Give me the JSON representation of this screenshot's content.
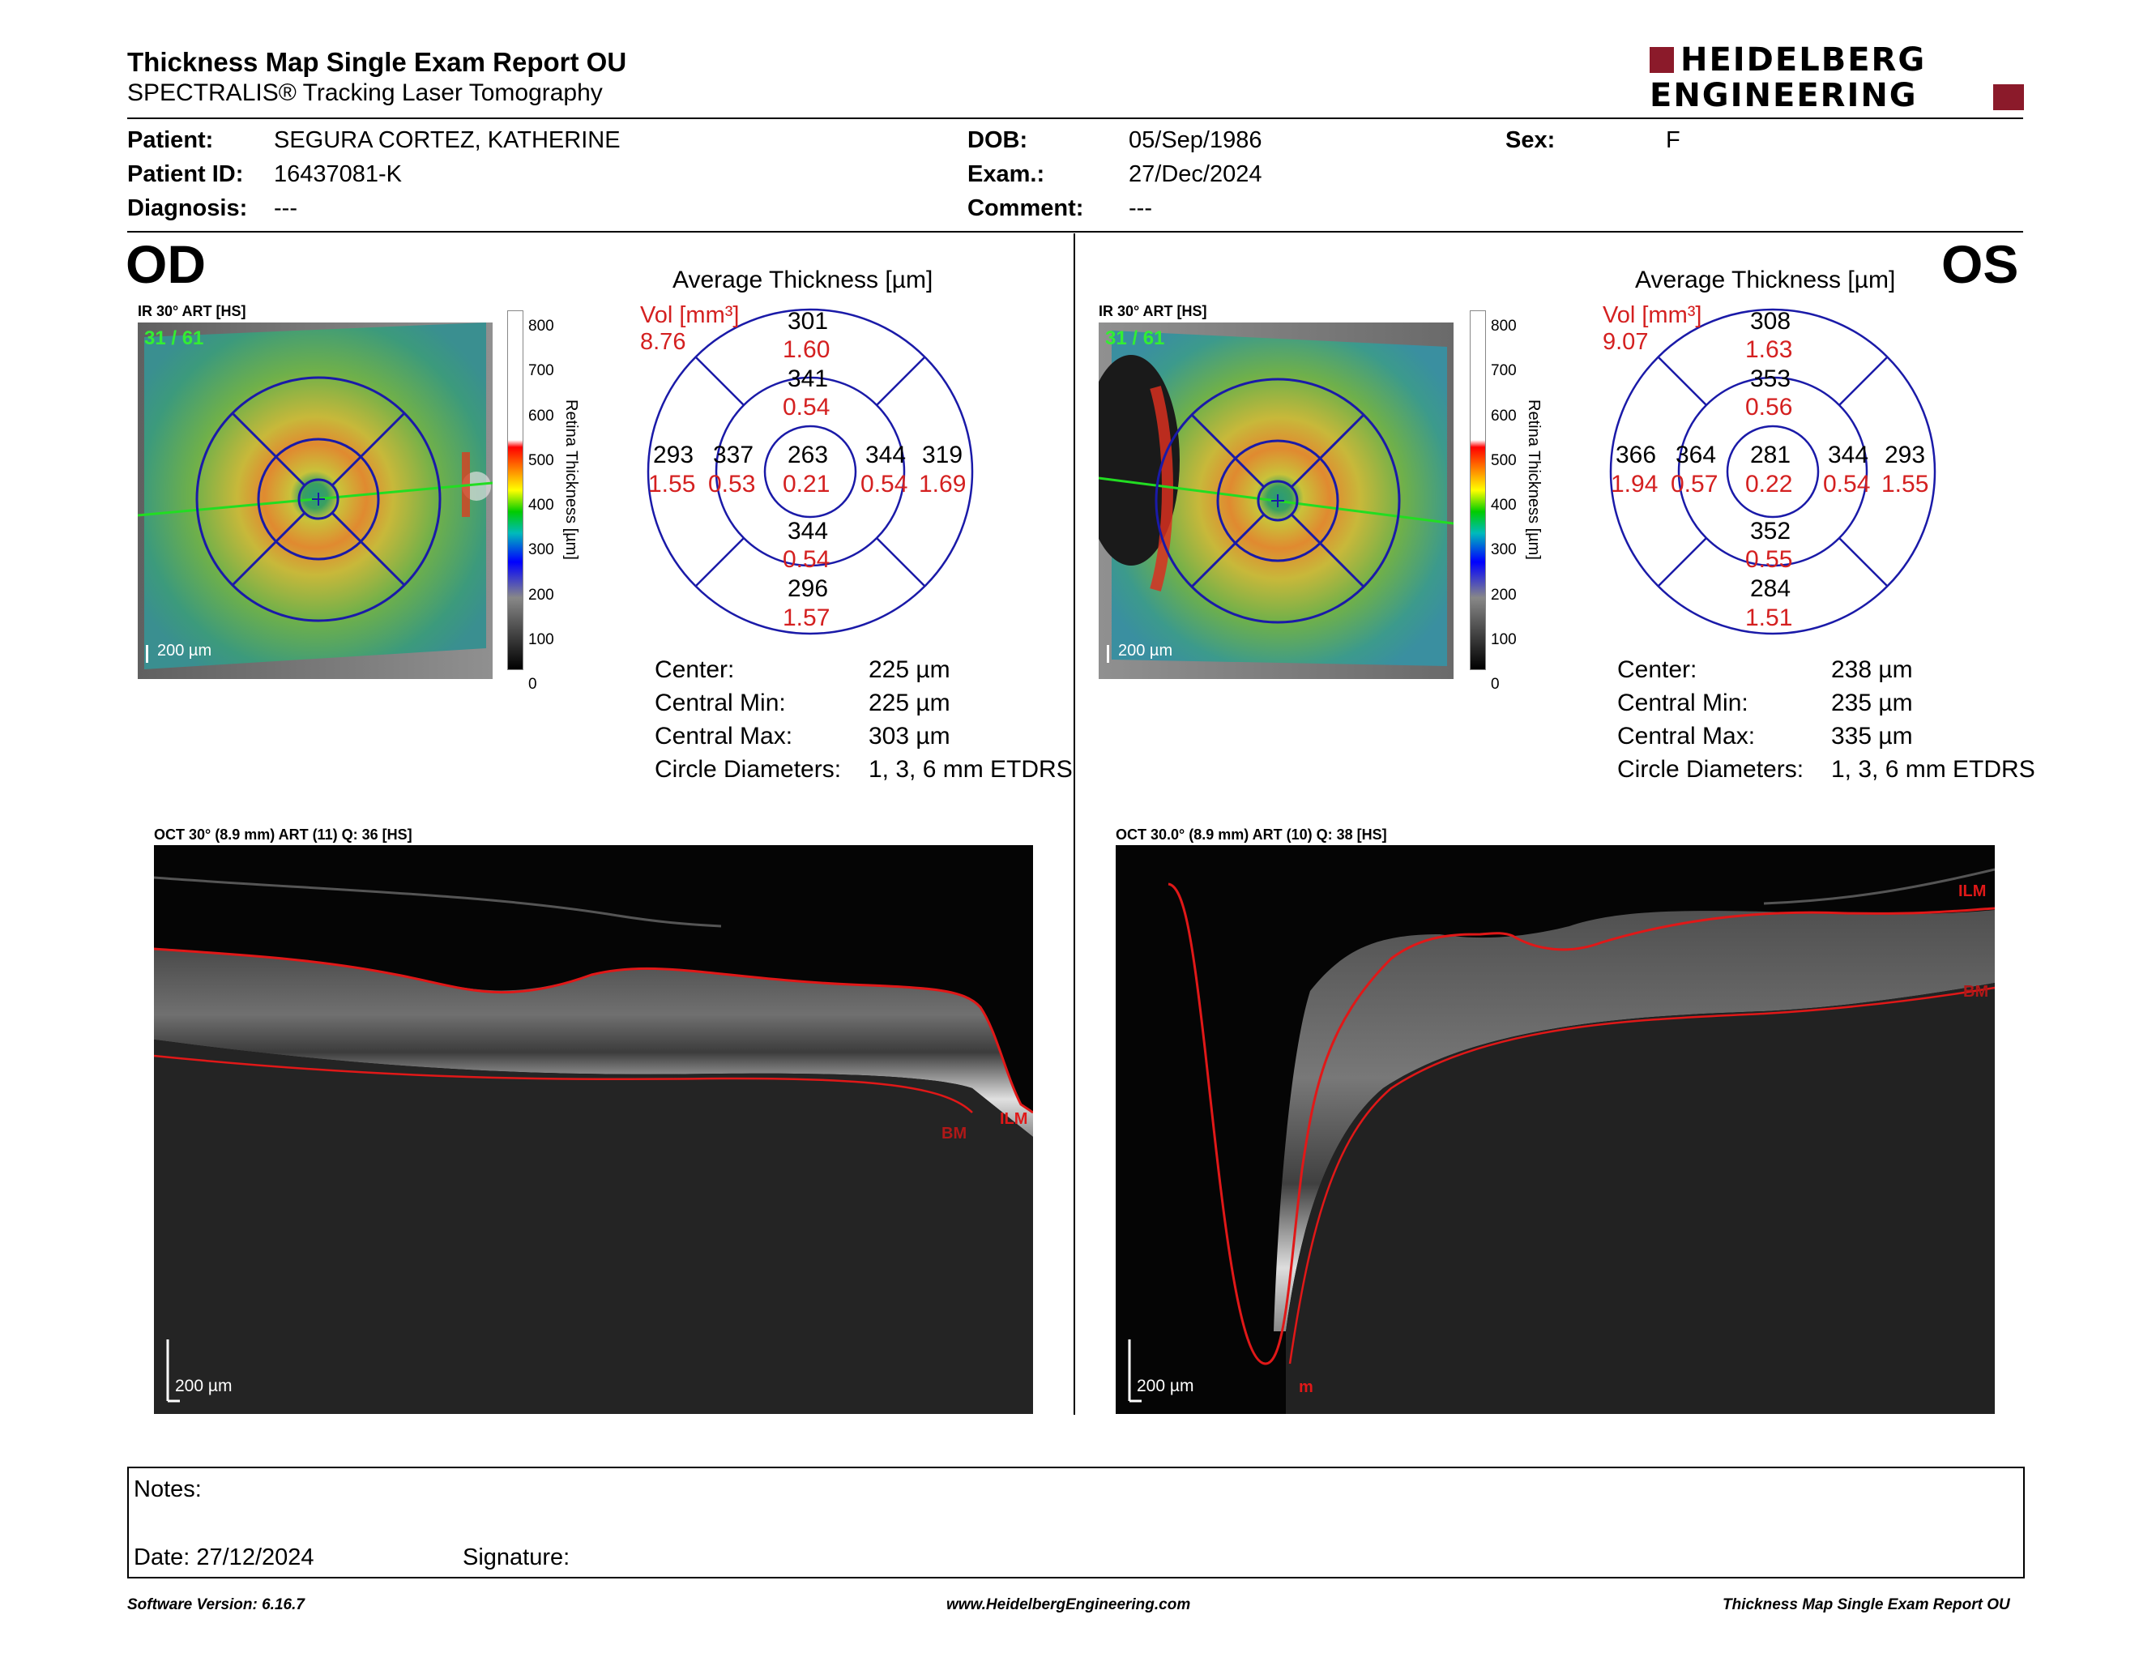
{
  "header": {
    "title": "Thickness Map Single Exam Report OU",
    "subtitle": "SPECTRALIS® Tracking Laser Tomography",
    "logo_line1": "HEIDELBERG",
    "logo_line2": "ENGINEERING"
  },
  "patient": {
    "patient_label": "Patient:",
    "patient_value": "SEGURA CORTEZ, KATHERINE",
    "id_label": "Patient ID:",
    "id_value": "16437081-K",
    "diagnosis_label": "Diagnosis:",
    "diagnosis_value": "---",
    "dob_label": "DOB:",
    "dob_value": "05/Sep/1986",
    "exam_label": "Exam.:",
    "exam_value": "27/Dec/2024",
    "comment_label": "Comment:",
    "comment_value": "---",
    "sex_label": "Sex:",
    "sex_value": "F"
  },
  "od": {
    "eye": "OD",
    "ir_label": "IR 30° ART [HS]",
    "frame": "31 / 61",
    "scale": "200 µm",
    "colorbar_title": "Retina Thickness [µm]",
    "colorbar_ticks": [
      "800",
      "700",
      "600",
      "500",
      "400",
      "300",
      "200",
      "100",
      "0"
    ],
    "avg_title": "Average Thickness [µm]",
    "vol_label": "Vol [mm³]",
    "vol_value": "8.76",
    "etdrs": {
      "center": {
        "t": "263",
        "v": "0.21"
      },
      "inner_sup": {
        "t": "341",
        "v": "0.54"
      },
      "inner_inf": {
        "t": "344",
        "v": "0.54"
      },
      "inner_left": {
        "t": "337",
        "v": "0.53"
      },
      "inner_right": {
        "t": "344",
        "v": "0.54"
      },
      "outer_sup": {
        "t": "301",
        "v": "1.60"
      },
      "outer_inf": {
        "t": "296",
        "v": "1.57"
      },
      "outer_left": {
        "t": "293",
        "v": "1.55"
      },
      "outer_right": {
        "t": "319",
        "v": "1.69"
      }
    },
    "stats": [
      {
        "label": "Center:",
        "value": "225 µm"
      },
      {
        "label": "Central Min:",
        "value": "225 µm"
      },
      {
        "label": "Central Max:",
        "value": "303 µm"
      },
      {
        "label": "Circle Diameters:",
        "value": "1, 3, 6 mm ETDRS"
      }
    ],
    "oct_label": "OCT 30° (8.9 mm) ART (11) Q: 36 [HS]",
    "oct_scale": "200 µm",
    "ilm": "ILM",
    "bm": "BM"
  },
  "os": {
    "eye": "OS",
    "ir_label": "IR 30° ART [HS]",
    "frame": "31 / 61",
    "scale": "200 µm",
    "colorbar_title": "Retina Thickness [µm]",
    "colorbar_ticks": [
      "800",
      "700",
      "600",
      "500",
      "400",
      "300",
      "200",
      "100",
      "0"
    ],
    "avg_title": "Average Thickness [µm]",
    "vol_label": "Vol [mm³]",
    "vol_value": "9.07",
    "etdrs": {
      "center": {
        "t": "281",
        "v": "0.22"
      },
      "inner_sup": {
        "t": "353",
        "v": "0.56"
      },
      "inner_inf": {
        "t": "352",
        "v": "0.55"
      },
      "inner_left": {
        "t": "364",
        "v": "0.57"
      },
      "inner_right": {
        "t": "344",
        "v": "0.54"
      },
      "outer_sup": {
        "t": "308",
        "v": "1.63"
      },
      "outer_inf": {
        "t": "284",
        "v": "1.51"
      },
      "outer_left": {
        "t": "366",
        "v": "1.94"
      },
      "outer_right": {
        "t": "293",
        "v": "1.55"
      }
    },
    "stats": [
      {
        "label": "Center:",
        "value": "238 µm"
      },
      {
        "label": "Central Min:",
        "value": "235 µm"
      },
      {
        "label": "Central Max:",
        "value": "335 µm"
      },
      {
        "label": "Circle Diameters:",
        "value": "1, 3, 6 mm ETDRS"
      }
    ],
    "oct_label": "OCT 30.0° (8.9 mm) ART (10) Q: 38 [HS]",
    "oct_scale": "200 µm",
    "ilm": "ILM",
    "bm": "BM",
    "m": "m"
  },
  "notes": {
    "notes_label": "Notes:",
    "date_label": "Date: 27/12/2024",
    "signature_label": "Signature:"
  },
  "footer": {
    "software": "Software Version: 6.16.7",
    "website": "www.HeidelbergEngineering.com",
    "report": "Thickness Map Single Exam Report OU"
  },
  "colors": {
    "grid_blue": "#1a1aa8",
    "value_red": "#d42020",
    "logo_red": "#8b1a2a"
  }
}
